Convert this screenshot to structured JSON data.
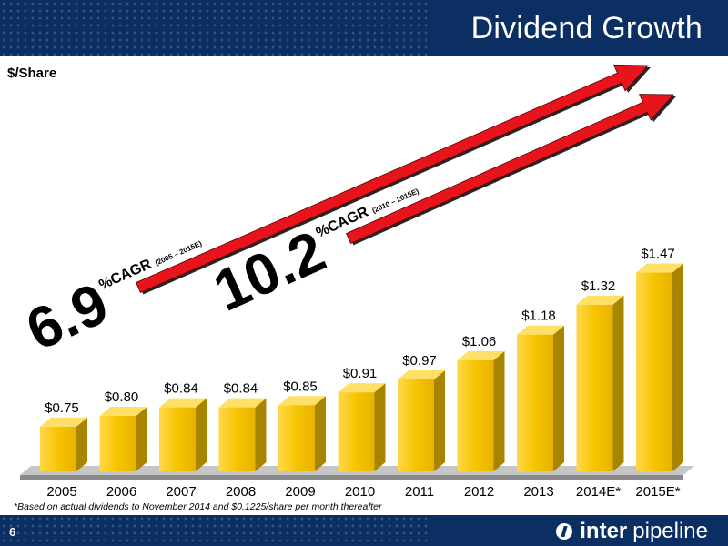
{
  "header": {
    "title": "Dividend Growth"
  },
  "footer": {
    "page_number": "6",
    "logo_text_bold": "inter",
    "logo_text_light": "pipeline"
  },
  "footnote": "*Based on actual dividends to November 2014 and $0.1225/share per month thereafter",
  "colors": {
    "bar": "#f7c400",
    "bar_dark": "#a88500",
    "arrow": "#e8141b",
    "header": "#0b2f63"
  },
  "chart_data": {
    "type": "bar",
    "ylabel": "$/Share",
    "categories": [
      "2005",
      "2006",
      "2007",
      "2008",
      "2009",
      "2010",
      "2011",
      "2012",
      "2013",
      "2014E*",
      "2015E*"
    ],
    "values": [
      0.75,
      0.8,
      0.84,
      0.84,
      0.85,
      0.91,
      0.97,
      1.06,
      1.18,
      1.32,
      1.47
    ],
    "labels": [
      "$0.75",
      "$0.80",
      "$0.84",
      "$0.84",
      "$0.85",
      "$0.91",
      "$0.97",
      "$1.06",
      "$1.18",
      "$1.32",
      "$1.47"
    ],
    "annotations": [
      {
        "value": "6.9",
        "unit": "%",
        "text": "CAGR",
        "period": "(2005 – 2015E)"
      },
      {
        "value": "10.2",
        "unit": "%",
        "text": "CAGR",
        "period": "(2010 – 2015E)"
      }
    ],
    "grid": false
  }
}
